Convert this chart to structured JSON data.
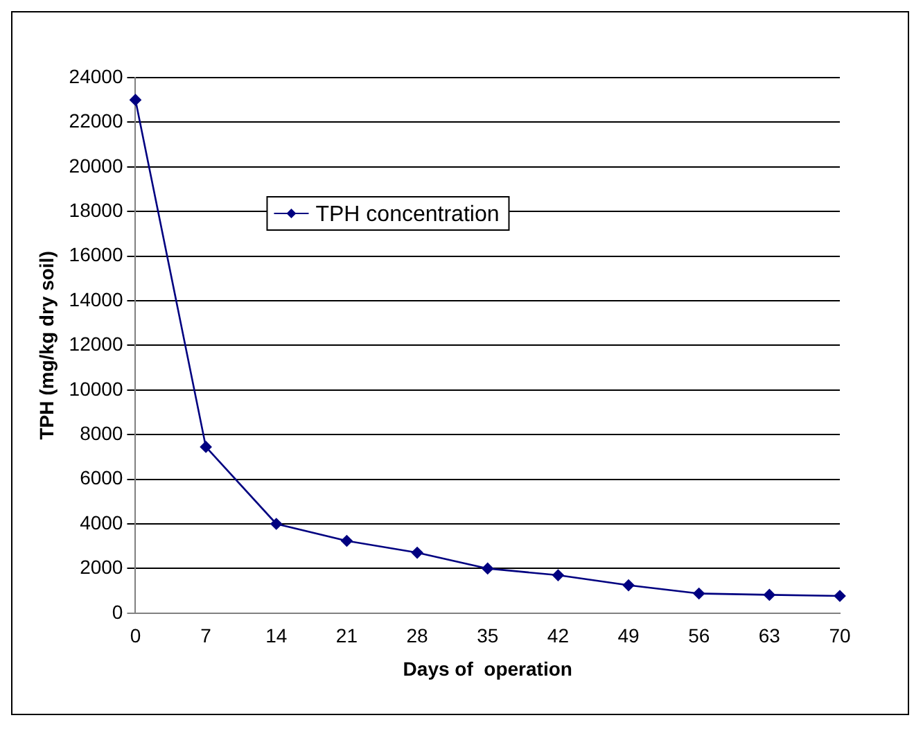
{
  "chart_data": {
    "type": "line",
    "xlabel": "Days of  operation",
    "ylabel": "TPH (mg/kg dry soil)",
    "categories": [
      "0",
      "7",
      "14",
      "21",
      "28",
      "35",
      "42",
      "49",
      "56",
      "63",
      "70"
    ],
    "series": [
      {
        "name": "TPH concentration",
        "color": "#000080",
        "values": [
          23000,
          7450,
          4000,
          3240,
          2710,
          2000,
          1700,
          1250,
          880,
          820,
          770
        ]
      }
    ],
    "ylim": [
      0,
      24000
    ],
    "yticks": [
      0,
      2000,
      4000,
      6000,
      8000,
      10000,
      12000,
      14000,
      16000,
      18000,
      20000,
      22000,
      24000
    ],
    "grid": "y",
    "legend": "top",
    "marker": "diamond",
    "line_style": "solid"
  }
}
